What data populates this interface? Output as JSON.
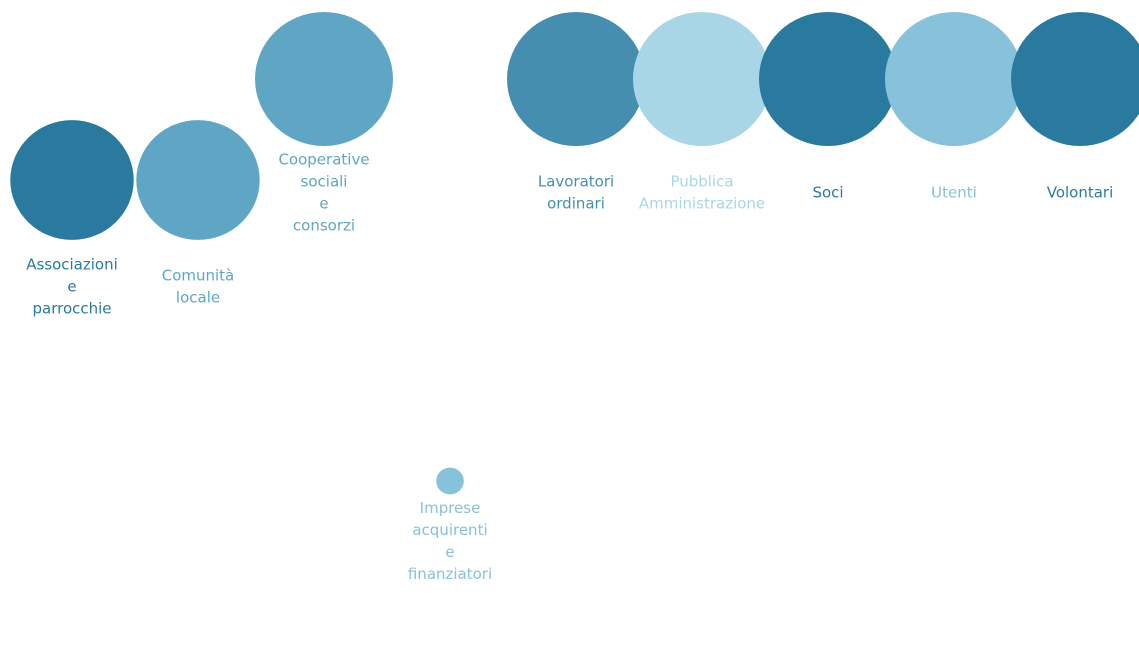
{
  "chart_data": {
    "type": "bubble",
    "title": "",
    "xlabel": "",
    "ylabel": "",
    "grid": false,
    "legend": "none",
    "items": [
      {
        "label_lines": [
          "Associazioni",
          "e",
          "parrocchie"
        ],
        "value": 60,
        "color": "#2a7aa0"
      },
      {
        "label_lines": [
          "Comunità",
          "locale"
        ],
        "value": 60,
        "color": "#5fa6c4"
      },
      {
        "label_lines": [
          "Cooperative",
          "sociali",
          "e",
          "consorzi"
        ],
        "value": 75,
        "color": "#5fa6c4"
      },
      {
        "label_lines": [
          "Imprese",
          "acquirenti",
          "e",
          "finanziatori"
        ],
        "value": 3,
        "color": "#88c1da"
      },
      {
        "label_lines": [
          "Lavoratori",
          "ordinari"
        ],
        "value": 75,
        "color": "#468eaf"
      },
      {
        "label_lines": [
          "Pubblica",
          "Amministrazione"
        ],
        "value": 75,
        "color": "#a8d6e6"
      },
      {
        "label_lines": [
          "Soci"
        ],
        "value": 75,
        "color": "#2a7aa0"
      },
      {
        "label_lines": [
          "Utenti"
        ],
        "value": 75,
        "color": "#88c1da"
      },
      {
        "label_lines": [
          "Volontari"
        ],
        "value": 75,
        "color": "#2a7aa0"
      }
    ]
  }
}
